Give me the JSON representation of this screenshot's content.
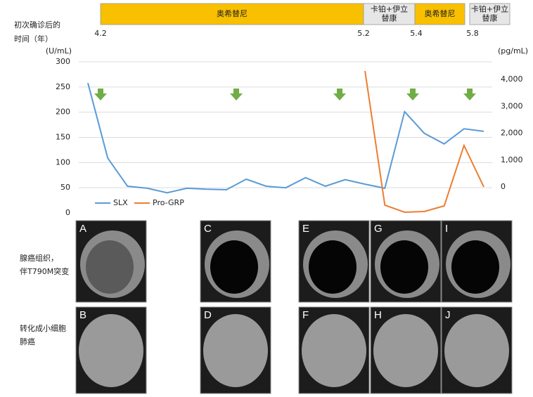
{
  "chart_data": {
    "type": "line",
    "time_axis_label": [
      "初次确诊后的",
      "时间（年）"
    ],
    "time_labels": [
      4.2,
      5.2,
      5.4,
      5.8
    ],
    "treatments": [
      {
        "label": [
          "奥希替尼"
        ],
        "color": "#f9c000"
      },
      {
        "label": [
          "卡铂+伊立",
          "替康"
        ],
        "color": "#e6e6e6"
      },
      {
        "label": [
          "奥希替尼"
        ],
        "color": "#f9c000"
      },
      {
        "label": [
          "卡铂+伊立",
          "替康"
        ],
        "color": "#e6e6e6"
      }
    ],
    "y_unit": "(U/mL)",
    "y2_unit": "(pg/mL)",
    "categories": [
      null,
      null,
      null,
      null,
      null,
      null,
      null,
      null,
      null,
      null,
      null,
      null,
      null,
      null,
      null,
      null,
      null,
      null,
      null,
      null,
      null
    ],
    "series": [
      {
        "name": "SLX",
        "color": "#5b9bd5",
        "values": [
          258,
          109,
          53,
          49,
          40,
          49,
          47,
          46,
          67,
          53,
          50,
          70,
          53,
          66,
          57,
          49,
          201,
          158,
          137,
          167,
          162
        ]
      },
      {
        "name": "Pro-GRP",
        "color": "#ed7d31",
        "axis": "y2",
        "values": [
          null,
          null,
          null,
          null,
          null,
          null,
          null,
          null,
          null,
          null,
          null,
          null,
          null,
          null,
          4314,
          -680,
          -941,
          -915,
          -706,
          1542,
          0
        ]
      }
    ],
    "ylim": [
      0,
      300
    ],
    "yticks": [
      0,
      50,
      100,
      150,
      200,
      250,
      300
    ],
    "y2lim": [
      -967,
      4654
    ],
    "y2ticks": [
      0,
      {
        "value": 1000,
        "label": "1,000"
      },
      {
        "value": 2000,
        "label": "2,000"
      },
      {
        "value": 3000,
        "label": "3,000"
      },
      {
        "value": 4000,
        "label": "4,000"
      }
    ],
    "grid": true,
    "row_labels": [
      [
        "腺癌组织，",
        "伴T790M突变"
      ],
      [
        "转化成小细胞",
        "肺癌"
      ]
    ],
    "panels": [
      [
        "A",
        "C",
        "E",
        "G",
        "I"
      ],
      [
        "B",
        "D",
        "F",
        "H",
        "J"
      ]
    ]
  }
}
